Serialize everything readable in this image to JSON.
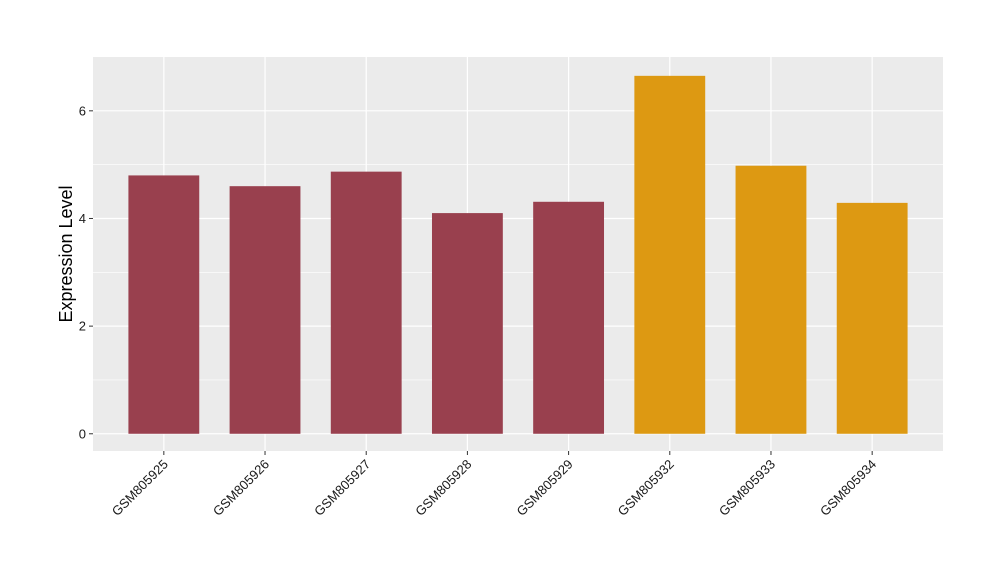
{
  "chart_data": {
    "type": "bar",
    "title": "",
    "xlabel": "",
    "ylabel": "Expression Level",
    "categories": [
      "GSM805925",
      "GSM805926",
      "GSM805927",
      "GSM805928",
      "GSM805929",
      "GSM805932",
      "GSM805933",
      "GSM805934"
    ],
    "values": [
      4.8,
      4.6,
      4.87,
      4.1,
      4.31,
      6.65,
      4.98,
      4.29
    ],
    "bar_colors": [
      "#99404e",
      "#99404e",
      "#99404e",
      "#99404e",
      "#99404e",
      "#dd9912",
      "#dd9912",
      "#dd9912"
    ],
    "ylim": [
      -0.32,
      7.0
    ],
    "yticks": [
      0,
      2,
      4,
      6
    ],
    "grid": true,
    "panel_background": "#ebebeb",
    "grid_color": "#ffffff"
  }
}
